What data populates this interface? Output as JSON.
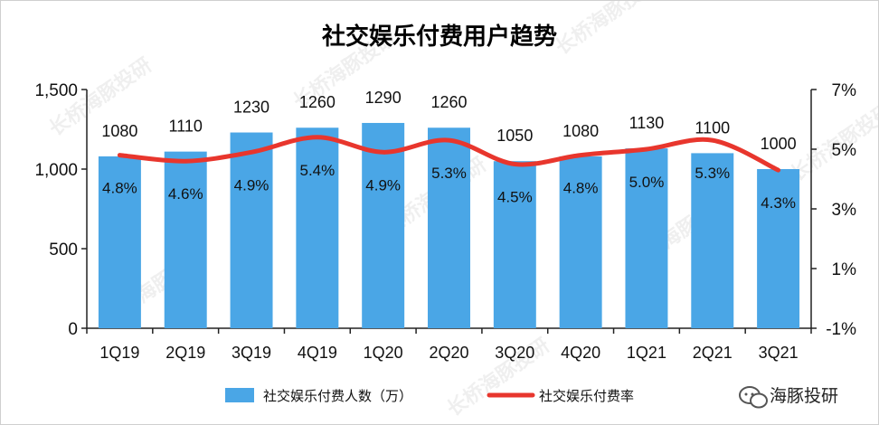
{
  "chart_data": {
    "type": "bar",
    "title": "社交娱乐付费用户趋势",
    "categories": [
      "1Q19",
      "2Q19",
      "3Q19",
      "4Q19",
      "1Q20",
      "2Q20",
      "3Q20",
      "4Q20",
      "1Q21",
      "2Q21",
      "3Q21"
    ],
    "series": [
      {
        "name": "社交娱乐付费人数（万）",
        "type": "bar",
        "axis": "left",
        "values": [
          1080,
          1110,
          1230,
          1260,
          1290,
          1260,
          1050,
          1080,
          1130,
          1100,
          1000
        ],
        "labels": [
          "1080",
          "1110",
          "1230",
          "1260",
          "1290",
          "1260",
          "1050",
          "1080",
          "1130",
          "1100",
          "1000"
        ],
        "color": "#4aa6e6"
      },
      {
        "name": "社交娱乐付费率",
        "type": "line",
        "axis": "right",
        "values": [
          4.8,
          4.6,
          4.9,
          5.4,
          4.9,
          5.3,
          4.5,
          4.8,
          5.0,
          5.3,
          4.3
        ],
        "labels": [
          "4.8%",
          "4.6%",
          "4.9%",
          "5.4%",
          "4.9%",
          "5.3%",
          "4.5%",
          "4.8%",
          "5.0%",
          "5.3%",
          "4.3%"
        ],
        "color": "#e8362d"
      }
    ],
    "left_axis": {
      "ylim": [
        0,
        1500
      ],
      "ticks": [
        0,
        500,
        1000,
        1500
      ],
      "tick_labels": [
        "0",
        "500",
        "1,000",
        "1,500"
      ]
    },
    "right_axis": {
      "ylim": [
        -1,
        7
      ],
      "ticks": [
        -1,
        1,
        3,
        5,
        7
      ],
      "tick_labels": [
        "-1%",
        "1%",
        "3%",
        "5%",
        "7%"
      ]
    },
    "grid": false,
    "legend": "bottom"
  },
  "brand": {
    "name": "海豚投研",
    "watermark": "长桥海豚投研",
    "logo_icon": "wechat-logo-icon"
  }
}
